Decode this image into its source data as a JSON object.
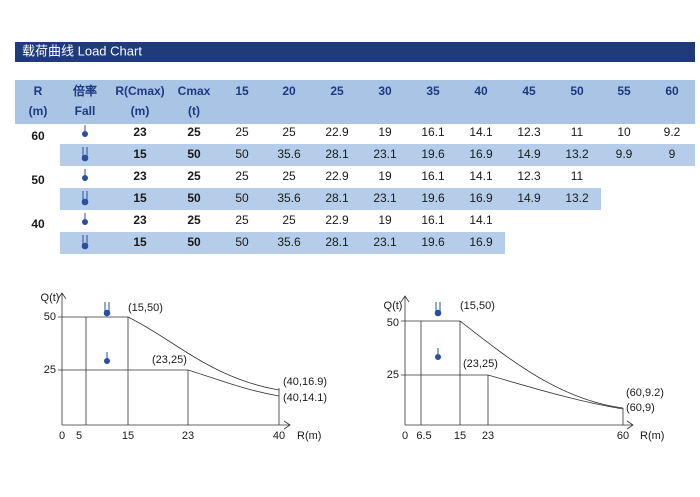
{
  "title": "载荷曲线  Load Chart",
  "table": {
    "header": [
      [
        "R",
        "倍率",
        "R(Cmax)",
        "Cmax",
        "15",
        "20",
        "25",
        "30",
        "35",
        "40",
        "45",
        "50",
        "55",
        "60"
      ],
      [
        "(m)",
        "Fall",
        "(m)",
        "(t)"
      ]
    ],
    "groups": [
      {
        "R": "60",
        "rows": [
          [
            "23",
            "25",
            "25",
            "25",
            "22.9",
            "19",
            "16.1",
            "14.1",
            "12.3",
            "11",
            "10",
            "9.2"
          ],
          [
            "15",
            "50",
            "50",
            "35.6",
            "28.1",
            "23.1",
            "19.6",
            "16.9",
            "14.9",
            "13.2",
            "9.9",
            "9"
          ]
        ]
      },
      {
        "R": "50",
        "rows": [
          [
            "23",
            "25",
            "25",
            "25",
            "22.9",
            "19",
            "16.1",
            "14.1",
            "12.3",
            "11"
          ],
          [
            "15",
            "50",
            "50",
            "35.6",
            "28.1",
            "23.1",
            "19.6",
            "16.9",
            "14.9",
            "13.2"
          ]
        ]
      },
      {
        "R": "40",
        "rows": [
          [
            "23",
            "25",
            "25",
            "25",
            "22.9",
            "19",
            "16.1",
            "14.1"
          ],
          [
            "15",
            "50",
            "50",
            "35.6",
            "28.1",
            "23.1",
            "19.6",
            "16.9"
          ]
        ]
      }
    ]
  },
  "diagrams": [
    {
      "y_label": "Q(t)",
      "x_label": "R(m)",
      "x_ticks": [
        "0",
        "5",
        "15",
        "23",
        "40"
      ],
      "y_ticks": [
        "50",
        "25"
      ],
      "points": [
        "(15,50)",
        "(23,25)",
        "(40,16.9)",
        "(40,14.1)"
      ]
    },
    {
      "y_label": "Q(t)",
      "x_label": "R(m)",
      "x_ticks": [
        "0",
        "6.5",
        "15",
        "23",
        "60"
      ],
      "y_ticks": [
        "50",
        "25"
      ],
      "points": [
        "(15,50)",
        "(23,25)",
        "(60,9.2)",
        "(60,9)"
      ]
    }
  ]
}
